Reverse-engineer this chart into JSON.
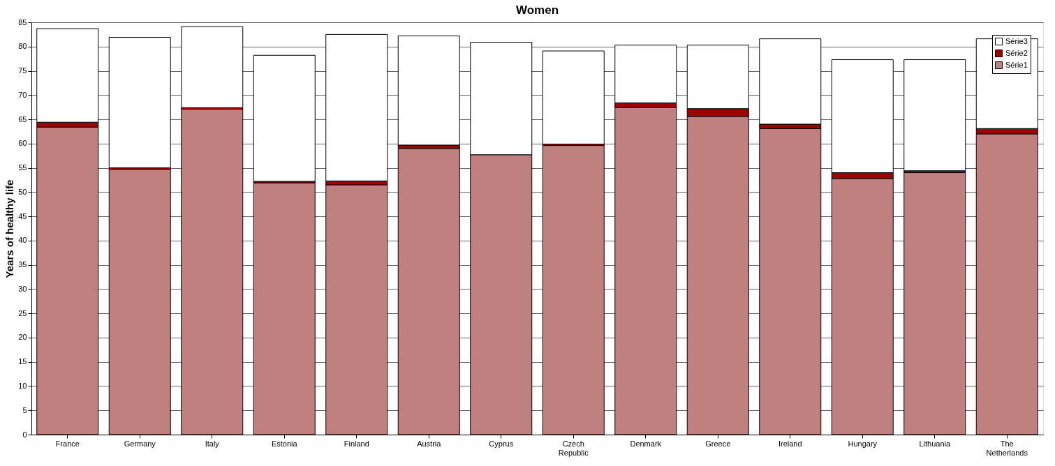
{
  "chart_data": {
    "type": "bar",
    "title": "Women",
    "ylabel": "Years of healthy life",
    "stacked": true,
    "categories": [
      "France",
      "Germany",
      "Italy",
      "Estonia",
      "Finland",
      "Austria",
      "Cyprus",
      "Czech Republic",
      "Denmark",
      "Greece",
      "Ireland",
      "Hungary",
      "Lithuania",
      "The Netherlands"
    ],
    "series": [
      {
        "name": "Série1",
        "color": "#c08080",
        "values": [
          63.4,
          54.7,
          67.1,
          51.9,
          51.5,
          59.0,
          57.7,
          59.6,
          67.4,
          65.6,
          63.1,
          52.8,
          54.0,
          62.0
        ]
      },
      {
        "name": "Série2",
        "color": "#a00000",
        "values": [
          1.0,
          0.3,
          0.3,
          0.3,
          0.8,
          0.7,
          null,
          0.3,
          1.0,
          1.6,
          0.9,
          1.2,
          0.4,
          1.1
        ]
      },
      {
        "name": "Série3",
        "color": "#ffffff",
        "values": [
          19.3,
          26.9,
          16.7,
          26.0,
          30.2,
          22.5,
          23.2,
          19.2,
          11.9,
          13.1,
          17.6,
          23.3,
          22.9,
          18.5
        ]
      }
    ],
    "ylim": [
      0,
      85
    ],
    "yticks": [
      0,
      5,
      10,
      15,
      20,
      25,
      30,
      35,
      40,
      45,
      50,
      55,
      60,
      65,
      70,
      75,
      80,
      85
    ],
    "grid": "y",
    "legend": "top right"
  }
}
